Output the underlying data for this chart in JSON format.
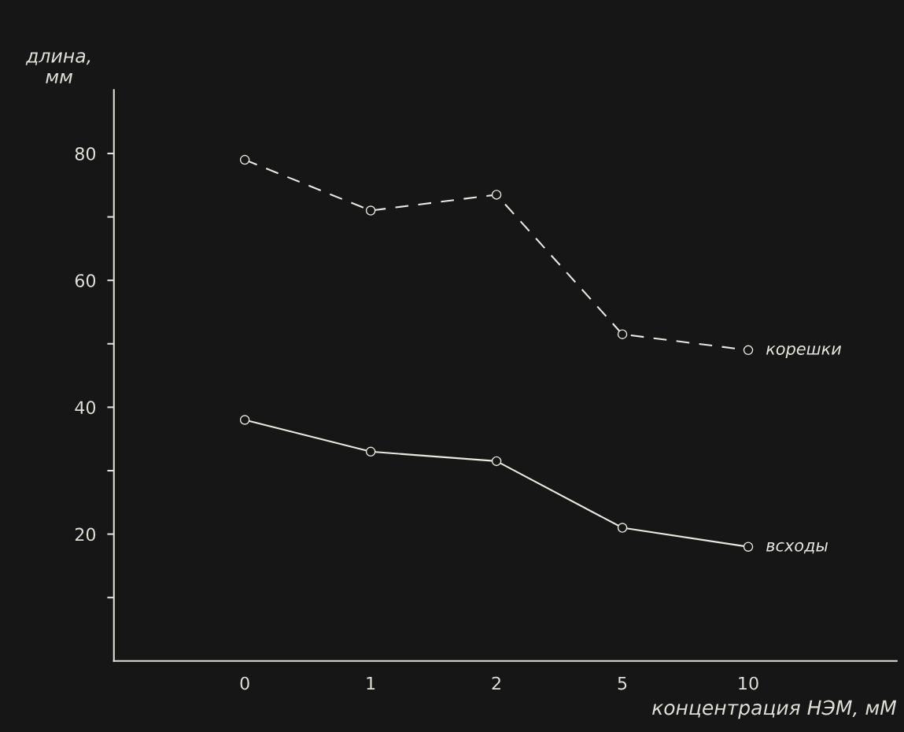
{
  "chart_data": {
    "type": "line",
    "xlabel": "концентрация НЭМ, мМ",
    "ylabel": "длина,\nмм",
    "categories": [
      "0",
      "1",
      "2",
      "5",
      "10"
    ],
    "ylim": [
      0,
      90
    ],
    "yticks": [
      {
        "value": 10,
        "label": null
      },
      20,
      {
        "value": 30,
        "label": null
      },
      40,
      {
        "value": 50,
        "label": null
      },
      60,
      {
        "value": 70,
        "label": null
      },
      80
    ],
    "marker": "circle",
    "series": [
      {
        "name": "корешки",
        "color": "#e8e8e0",
        "line_style": "dashed",
        "values": [
          79,
          71,
          73.5,
          51.5,
          49
        ]
      },
      {
        "name": "всходы",
        "color": "#e8e8e0",
        "line_style": "solid",
        "values": [
          38,
          33,
          31.5,
          21,
          18
        ]
      }
    ]
  }
}
